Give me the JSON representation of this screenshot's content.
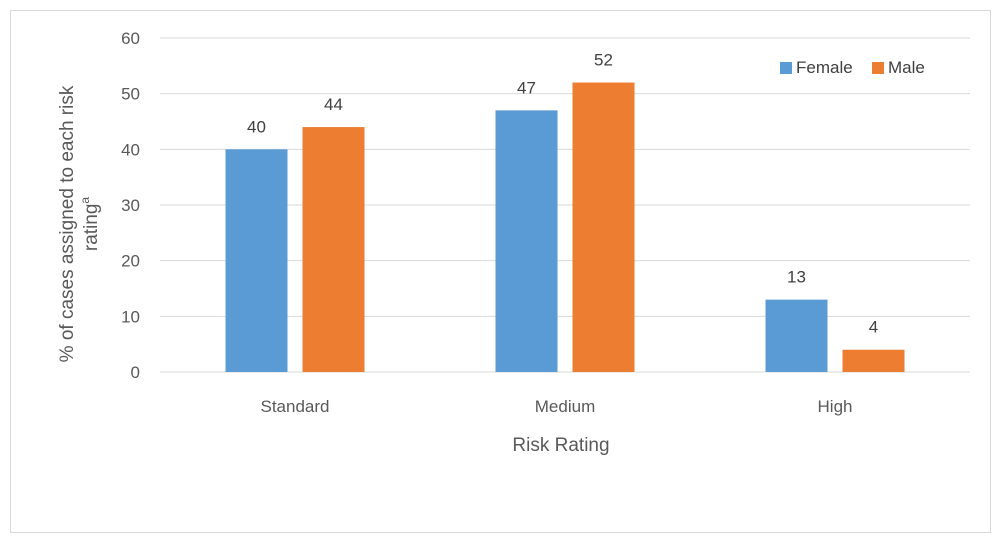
{
  "chart_data": {
    "type": "bar",
    "categories": [
      "Standard",
      "Medium",
      "High"
    ],
    "series": [
      {
        "name": "Female",
        "values": [
          40,
          47,
          13
        ],
        "color": "#5b9bd5"
      },
      {
        "name": "Male",
        "values": [
          44,
          52,
          4
        ],
        "color": "#ed7d31"
      }
    ],
    "xlabel": "Risk Rating",
    "ylabel_line1": "% of cases assigned to each risk",
    "ylabel_line2": "rating",
    "ylabel_superscript": "a",
    "ylim": [
      0,
      60
    ],
    "yticks": [
      0,
      10,
      20,
      30,
      40,
      50,
      60
    ],
    "grid": true,
    "legend_position": "top-right"
  }
}
